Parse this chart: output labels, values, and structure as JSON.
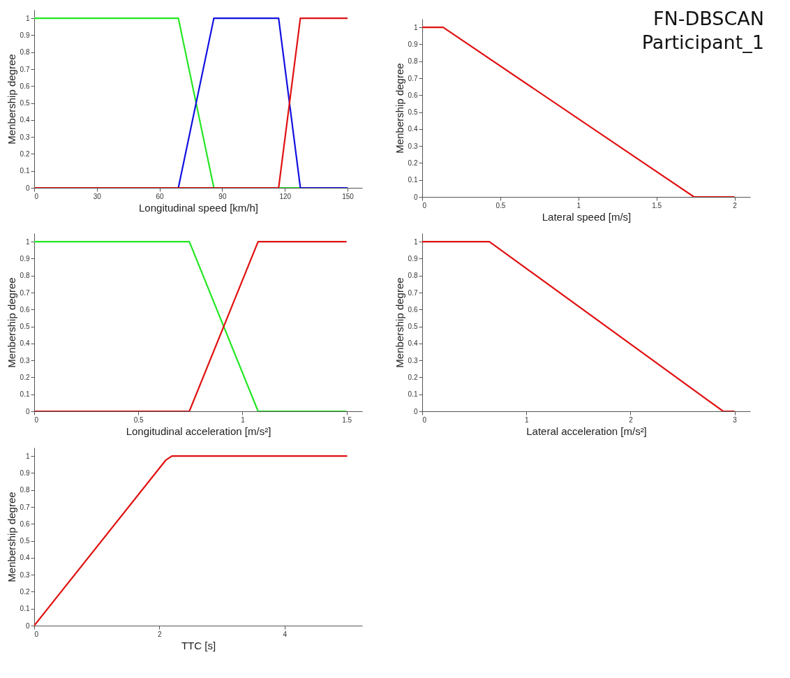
{
  "chart_data": [
    {
      "type": "line",
      "xlabel": "Longitudinal speed [km/h]",
      "ylabel": "Menbership degree",
      "xlim": [
        0,
        157
      ],
      "ylim": [
        0,
        1.05
      ],
      "xticks": [
        0,
        30,
        60,
        90,
        120,
        150
      ],
      "yticks": [
        0,
        0.1,
        0.2,
        0.3,
        0.4,
        0.5,
        0.6,
        0.7,
        0.8,
        0.9,
        1
      ],
      "series": [
        {
          "color": "#22e622",
          "x": [
            0,
            69,
            86,
            150
          ],
          "values": [
            1,
            1,
            0,
            0
          ]
        },
        {
          "color": "#1010e0",
          "x": [
            0,
            69,
            86,
            117,
            127.4,
            150
          ],
          "values": [
            0,
            0,
            1,
            1,
            0,
            0
          ]
        },
        {
          "color": "#e01010",
          "x": [
            0,
            117,
            127.4,
            150
          ],
          "values": [
            0,
            0,
            1,
            1
          ]
        }
      ]
    },
    {
      "type": "line",
      "xlabel": "Lateral speed [m/s]",
      "ylabel": "Menbership degree",
      "xlim": [
        0,
        2.1
      ],
      "ylim": [
        0,
        1.05
      ],
      "xticks": [
        0,
        0.5,
        1,
        1.5,
        2
      ],
      "yticks": [
        0,
        0.1,
        0.2,
        0.3,
        0.4,
        0.5,
        0.6,
        0.7,
        0.8,
        0.9,
        1
      ],
      "annotations": [
        "FN-DBSCAN",
        "Participant_1"
      ],
      "series": [
        {
          "color": "#e01010",
          "x": [
            0,
            0.134,
            1.74,
            2
          ],
          "values": [
            1,
            1,
            0,
            0
          ]
        }
      ]
    },
    {
      "type": "line",
      "xlabel": "Longitudinal acceleration [m/s²]",
      "ylabel": "Menbership degree",
      "xlim": [
        0,
        1.575
      ],
      "ylim": [
        0,
        1.05
      ],
      "xticks": [
        0,
        0.5,
        1,
        1.5
      ],
      "yticks": [
        0,
        0.1,
        0.2,
        0.3,
        0.4,
        0.5,
        0.6,
        0.7,
        0.8,
        0.9,
        1
      ],
      "series": [
        {
          "color": "#22e622",
          "x": [
            0,
            0.745,
            1.075,
            1.5
          ],
          "values": [
            1,
            1,
            0,
            0
          ]
        },
        {
          "color": "#e01010",
          "x": [
            0,
            0.745,
            1.075,
            1.5
          ],
          "values": [
            0,
            0,
            1,
            1
          ]
        }
      ]
    },
    {
      "type": "line",
      "xlabel": "Lateral acceleration [m/s²]",
      "ylabel": "Menbership degree",
      "xlim": [
        0,
        3.15
      ],
      "ylim": [
        0,
        1.05
      ],
      "xticks": [
        0,
        1,
        2,
        3
      ],
      "yticks": [
        0,
        0.1,
        0.2,
        0.3,
        0.4,
        0.5,
        0.6,
        0.7,
        0.8,
        0.9,
        1
      ],
      "series": [
        {
          "color": "#e01010",
          "x": [
            0,
            0.645,
            2.89,
            3
          ],
          "values": [
            1,
            1,
            0,
            0
          ]
        }
      ]
    },
    {
      "type": "line",
      "xlabel": "TTC [s]",
      "ylabel": "Menbership degree",
      "xlim": [
        0,
        5.24
      ],
      "ylim": [
        0,
        1.05
      ],
      "xticks": [
        0,
        2,
        4
      ],
      "yticks": [
        0,
        0.1,
        0.2,
        0.3,
        0.4,
        0.5,
        0.6,
        0.7,
        0.8,
        0.9,
        1
      ],
      "series": [
        {
          "color": "#e01010",
          "x": [
            0,
            2.1,
            2.2,
            5
          ],
          "values": [
            0,
            0.975,
            1,
            1
          ]
        }
      ]
    }
  ]
}
